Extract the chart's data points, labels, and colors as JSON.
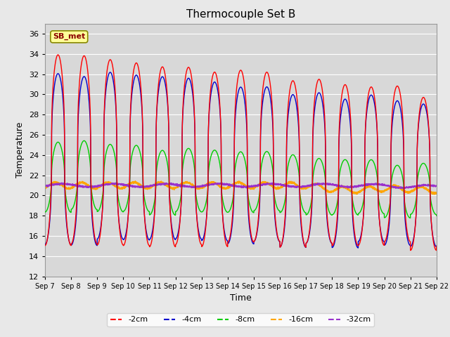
{
  "title": "Thermocouple Set B",
  "xlabel": "Time",
  "ylabel": "Temperature",
  "annotation": "SB_met",
  "ylim": [
    12,
    37
  ],
  "yticks": [
    12,
    14,
    16,
    18,
    20,
    22,
    24,
    26,
    28,
    30,
    32,
    34,
    36
  ],
  "colors": {
    "-2cm": "#ff0000",
    "-4cm": "#0000cd",
    "-8cm": "#00cc00",
    "-16cm": "#ffa500",
    "-32cm": "#9932cc"
  },
  "x_tick_labels": [
    "Sep 7",
    "Sep 8",
    "Sep 9",
    "Sep 10",
    "Sep 11",
    "Sep 12",
    "Sep 13",
    "Sep 14",
    "Sep 15",
    "Sep 16",
    "Sep 17",
    "Sep 18",
    "Sep 19",
    "Sep 20",
    "Sep 21",
    "Sep 22"
  ],
  "background_color": "#e8e8e8",
  "plot_bg_color": "#d8d8d8",
  "annotation_bg": "#ffff99",
  "annotation_border": "#888800"
}
